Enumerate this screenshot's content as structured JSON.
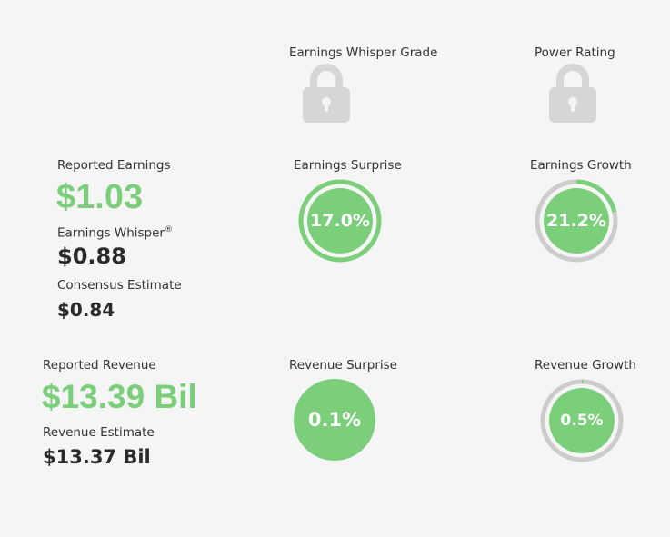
{
  "grades": {
    "earnings_whisper_grade_label": "Earnings Whisper Grade",
    "power_rating_label": "Power Rating",
    "lock_icon": "lock-icon"
  },
  "earnings": {
    "reported_label": "Reported Earnings",
    "reported_value": "$1.03",
    "whisper_label": "Earnings Whisper",
    "whisper_mark": "®",
    "whisper_value": "$0.88",
    "consensus_label": "Consensus Estimate",
    "consensus_value": "$0.84",
    "surprise_label": "Earnings Surprise",
    "surprise_value": "17.0%",
    "surprise_fraction": 1.0,
    "growth_label": "Earnings Growth",
    "growth_value": "21.2%",
    "growth_fraction": 0.212
  },
  "revenue": {
    "reported_label": "Reported Revenue",
    "reported_value": "$13.39 Bil",
    "estimate_label": "Revenue Estimate",
    "estimate_value": "$13.37 Bil",
    "surprise_label": "Revenue Surprise",
    "surprise_value": "0.1%",
    "growth_label": "Revenue Growth",
    "growth_value": "0.5%",
    "growth_fraction": 0.005
  },
  "colors": {
    "green": "#7bcf7b",
    "gray_track": "#cccccc",
    "lock_gray": "#d6d6d6"
  }
}
